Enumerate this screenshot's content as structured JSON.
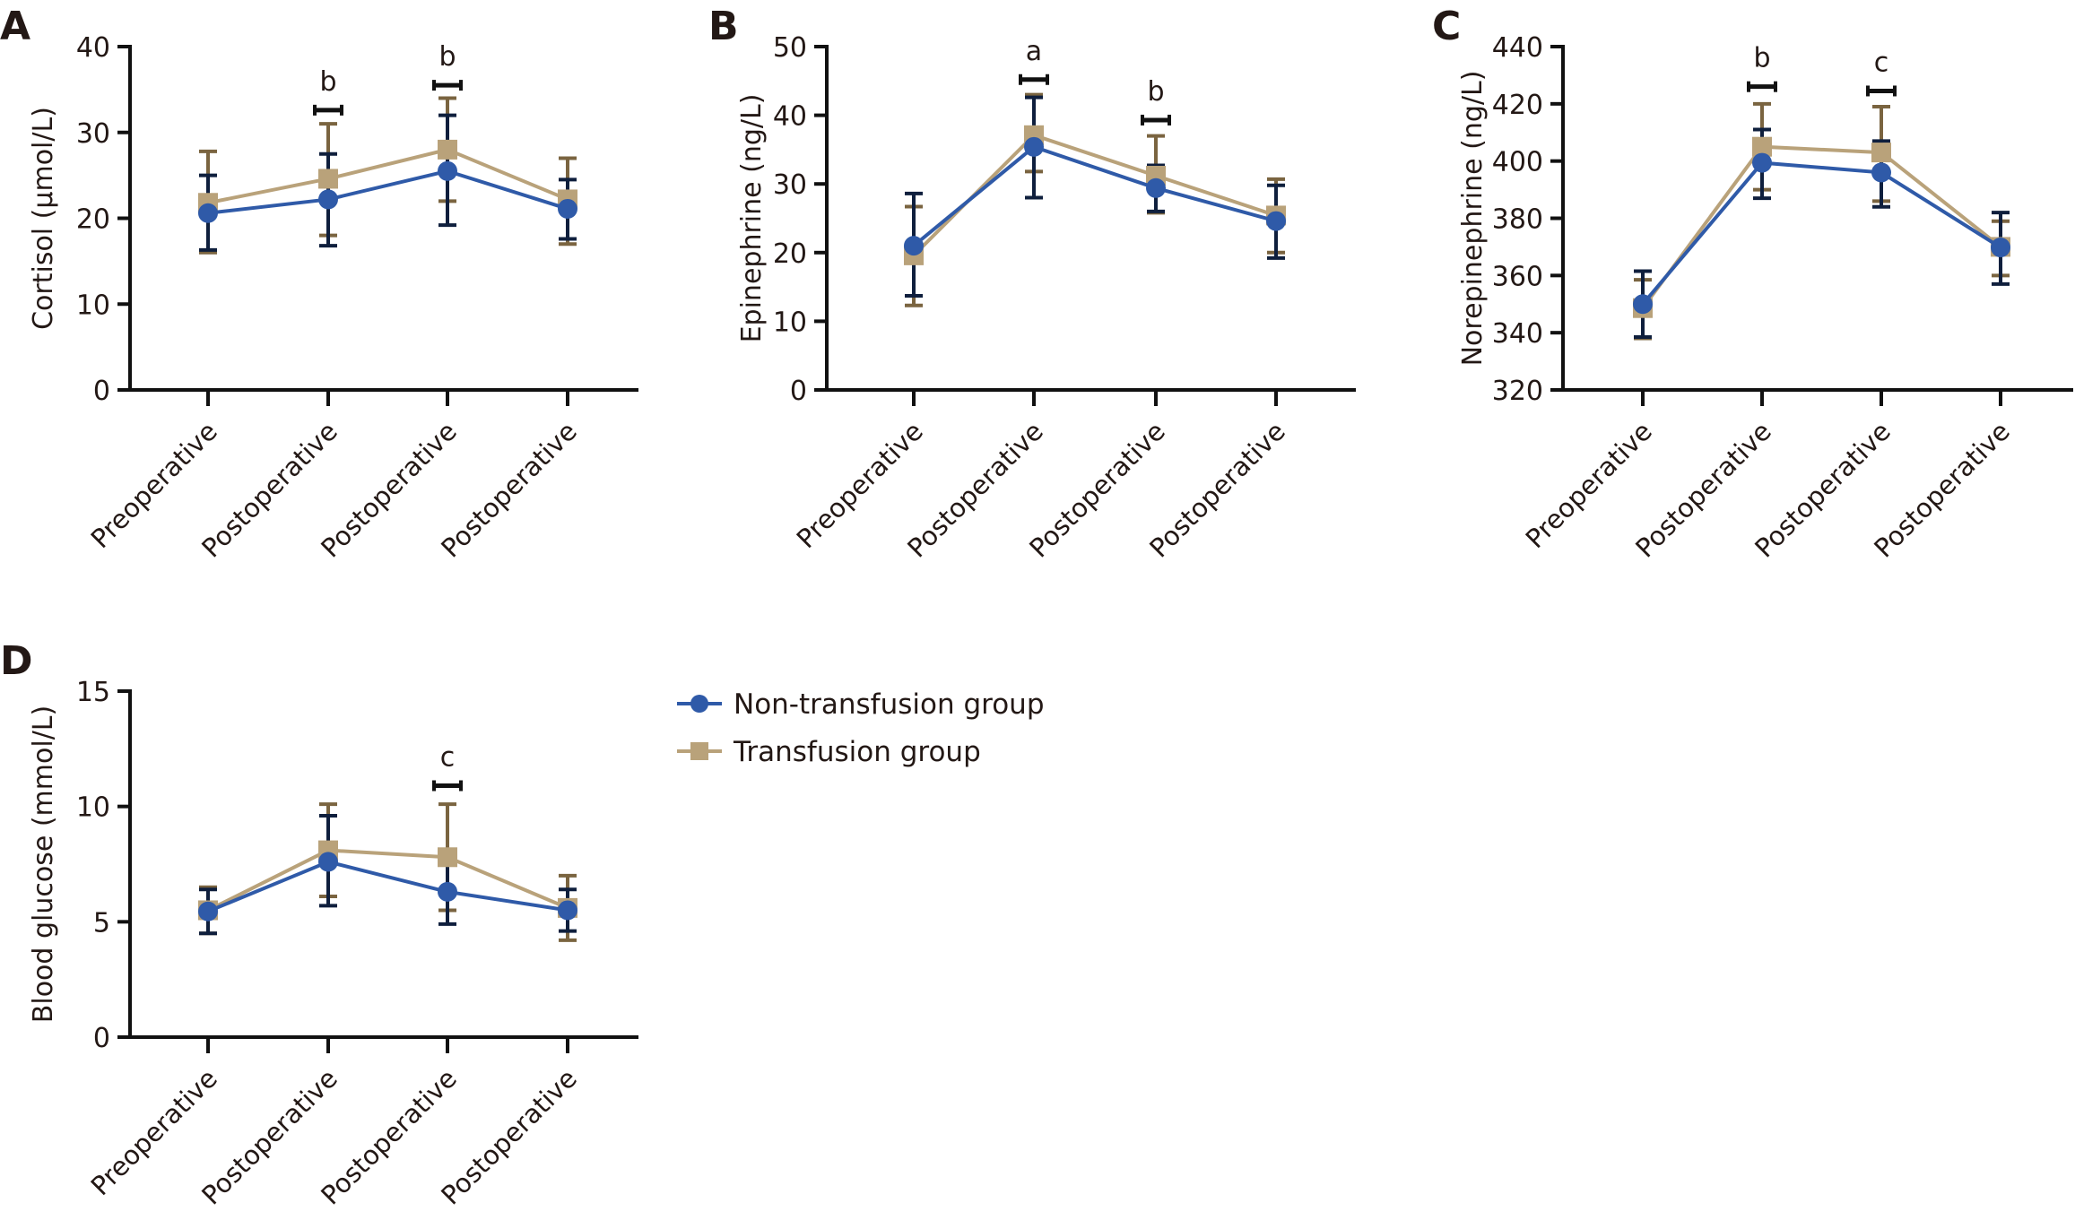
{
  "legend": {
    "items": [
      {
        "label": "Non-transfusion group",
        "color": "#2f5aa8",
        "marker": "circle"
      },
      {
        "label": "Transfusion group",
        "color": "#b9a27a",
        "marker": "square"
      }
    ]
  },
  "colors": {
    "non_transfusion_line": "#2f5aa8",
    "non_transfusion_error": "#0f1f3d",
    "transfusion_line": "#b9a27a",
    "transfusion_error": "#7a6440",
    "significance_bar": "#111111",
    "axis": "#111111"
  },
  "chart_data": [
    {
      "panel": "A",
      "type": "line",
      "title": "",
      "xlabel": "",
      "ylabel": "Cortisol (μmol/L)",
      "ylim": [
        0,
        40
      ],
      "yticks": [
        0,
        10,
        20,
        30,
        40
      ],
      "categories": [
        "Preoperative",
        "Postoperative",
        "Postoperative",
        "Postoperative"
      ],
      "series": [
        {
          "name": "Non-transfusion group",
          "values": [
            20.6,
            22.2,
            25.5,
            21.1
          ],
          "err_high": [
            25.0,
            27.5,
            32.0,
            24.5
          ],
          "err_low": [
            16.3,
            16.8,
            19.2,
            17.6
          ]
        },
        {
          "name": "Transfusion group",
          "values": [
            21.8,
            24.6,
            28.0,
            22.2
          ],
          "err_high": [
            27.8,
            31.0,
            34.0,
            27.0
          ],
          "err_low": [
            16.0,
            18.0,
            22.0,
            17.0
          ]
        }
      ],
      "significance": [
        {
          "index": 1,
          "label": "b",
          "bar_value": 32.6
        },
        {
          "index": 2,
          "label": "b",
          "bar_value": 35.5
        }
      ],
      "grid": false
    },
    {
      "panel": "B",
      "type": "line",
      "title": "",
      "xlabel": "",
      "ylabel": "Epinephrine (ng/L)",
      "ylim": [
        0,
        50
      ],
      "yticks": [
        0,
        10,
        20,
        30,
        40,
        50
      ],
      "categories": [
        "Preoperative",
        "Postoperative",
        "Postoperative",
        "Postoperative"
      ],
      "series": [
        {
          "name": "Non-transfusion group",
          "values": [
            21.0,
            35.4,
            29.4,
            24.6
          ],
          "err_high": [
            28.6,
            42.6,
            32.7,
            29.8
          ],
          "err_low": [
            13.7,
            28.0,
            26.0,
            19.2
          ]
        },
        {
          "name": "Transfusion group",
          "values": [
            19.6,
            37.1,
            31.2,
            25.4
          ],
          "err_high": [
            26.7,
            43.0,
            37.0,
            30.7
          ],
          "err_low": [
            12.3,
            31.8,
            25.8,
            20.0
          ]
        }
      ],
      "significance": [
        {
          "index": 1,
          "label": "a",
          "bar_value": 45.2
        },
        {
          "index": 2,
          "label": "b",
          "bar_value": 39.3
        }
      ],
      "grid": false
    },
    {
      "panel": "C",
      "type": "line",
      "title": "",
      "xlabel": "",
      "ylabel": "Norepinephrine (ng/L)",
      "ylim": [
        320,
        440
      ],
      "yticks": [
        320,
        340,
        360,
        380,
        400,
        420,
        440
      ],
      "categories": [
        "Preoperative",
        "Postoperative",
        "Postoperative",
        "Postoperative"
      ],
      "series": [
        {
          "name": "Non-transfusion group",
          "values": [
            350.0,
            399.4,
            396.0,
            369.8
          ],
          "err_high": [
            361.5,
            411.0,
            407.0,
            382.0
          ],
          "err_low": [
            338.5,
            387.0,
            384.0,
            357.0
          ]
        },
        {
          "name": "Transfusion group",
          "values": [
            348.6,
            405.0,
            403.0,
            370.0
          ],
          "err_high": [
            358.5,
            420.0,
            419.0,
            379.0
          ],
          "err_low": [
            338.0,
            390.0,
            386.0,
            360.0
          ]
        }
      ],
      "significance": [
        {
          "index": 1,
          "label": "b",
          "bar_value": 426.0
        },
        {
          "index": 2,
          "label": "c",
          "bar_value": 424.5
        }
      ],
      "grid": false
    },
    {
      "panel": "D",
      "type": "line",
      "title": "",
      "xlabel": "",
      "ylabel": "Blood glucose (mmol/L)",
      "ylim": [
        0,
        15
      ],
      "yticks": [
        0,
        5,
        10,
        15
      ],
      "categories": [
        "Preoperative",
        "Postoperative",
        "Postoperative",
        "Postoperative"
      ],
      "series": [
        {
          "name": "Non-transfusion group",
          "values": [
            5.45,
            7.6,
            6.3,
            5.5
          ],
          "err_high": [
            6.4,
            9.6,
            7.7,
            6.4
          ],
          "err_low": [
            4.5,
            5.7,
            4.9,
            4.6
          ]
        },
        {
          "name": "Transfusion group",
          "values": [
            5.5,
            8.1,
            7.8,
            5.6
          ],
          "err_high": [
            6.5,
            10.1,
            10.1,
            7.0
          ],
          "err_low": [
            4.5,
            6.1,
            5.5,
            4.2
          ]
        }
      ],
      "significance": [
        {
          "index": 2,
          "label": "c",
          "bar_value": 10.9
        }
      ],
      "grid": false
    }
  ]
}
